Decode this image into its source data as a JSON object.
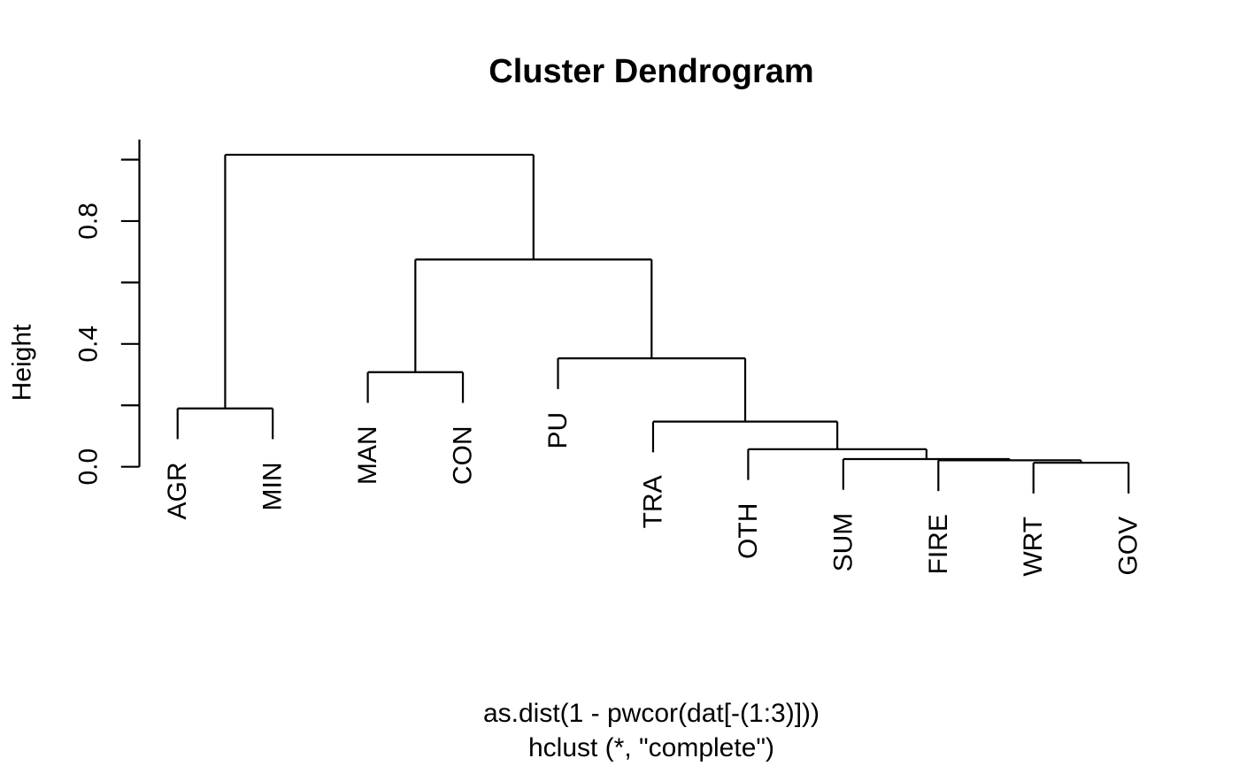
{
  "chart_data": {
    "type": "dendrogram",
    "title": "Cluster Dendrogram",
    "ylabel": "Height",
    "caption_line1": "as.dist(1 - pwcor(dat[-(1:3)]))",
    "caption_line2": "hclust (*, \"complete\")",
    "leaves_left_to_right": [
      "AGR",
      "MIN",
      "MAN",
      "CON",
      "PU",
      "TRA",
      "OTH",
      "SUM",
      "FIRE",
      "WRT",
      "GOV"
    ],
    "ylim": [
      0,
      1
    ],
    "hang": 0.1,
    "grid": false,
    "line_color": "#000000",
    "background_color": "#ffffff",
    "yticks": [
      {
        "value": 0.0,
        "label": "0.0"
      },
      {
        "value": 0.2,
        "label": ""
      },
      {
        "value": 0.4,
        "label": "0.4"
      },
      {
        "value": 0.6,
        "label": ""
      },
      {
        "value": 0.8,
        "label": "0.8"
      },
      {
        "value": 1.0,
        "label": ""
      }
    ],
    "merges": [
      {
        "joins": [
          "WRT",
          "GOV"
        ],
        "height": 0.013
      },
      {
        "joins": [
          "FIRE",
          "(WRT,GOV)"
        ],
        "height": 0.021
      },
      {
        "joins": [
          "SUM",
          "(FIRE,WRT,GOV)"
        ],
        "height": 0.025
      },
      {
        "joins": [
          "OTH",
          "(SUM,FIRE,WRT,GOV)"
        ],
        "height": 0.057
      },
      {
        "joins": [
          "TRA",
          "(OTH,SUM,FIRE,WRT,GOV)"
        ],
        "height": 0.147
      },
      {
        "joins": [
          "AGR",
          "MIN"
        ],
        "height": 0.19
      },
      {
        "joins": [
          "MAN",
          "CON"
        ],
        "height": 0.308
      },
      {
        "joins": [
          "PU",
          "(TRA,OTH,SUM,FIRE,WRT,GOV)"
        ],
        "height": 0.353
      },
      {
        "joins": [
          "(MAN,CON)",
          "(PU,TRA,OTH,SUM,FIRE,WRT,GOV)"
        ],
        "height": 0.675
      },
      {
        "joins": [
          "(AGR,MIN)",
          "(rest)"
        ],
        "height": 1.016
      }
    ],
    "tree": {
      "height": 1.016,
      "children": [
        {
          "height": 0.19,
          "children": [
            {
              "leaf": "AGR"
            },
            {
              "leaf": "MIN"
            }
          ]
        },
        {
          "height": 0.675,
          "children": [
            {
              "height": 0.308,
              "children": [
                {
                  "leaf": "MAN"
                },
                {
                  "leaf": "CON"
                }
              ]
            },
            {
              "height": 0.353,
              "children": [
                {
                  "leaf": "PU"
                },
                {
                  "height": 0.147,
                  "children": [
                    {
                      "leaf": "TRA"
                    },
                    {
                      "height": 0.057,
                      "children": [
                        {
                          "leaf": "OTH"
                        },
                        {
                          "height": 0.025,
                          "children": [
                            {
                              "leaf": "SUM"
                            },
                            {
                              "height": 0.021,
                              "children": [
                                {
                                  "leaf": "FIRE"
                                },
                                {
                                  "height": 0.013,
                                  "children": [
                                    {
                                      "leaf": "WRT"
                                    },
                                    {
                                      "leaf": "GOV"
                                    }
                                  ]
                                }
                              ]
                            }
                          ]
                        }
                      ]
                    }
                  ]
                }
              ]
            }
          ]
        }
      ]
    }
  }
}
